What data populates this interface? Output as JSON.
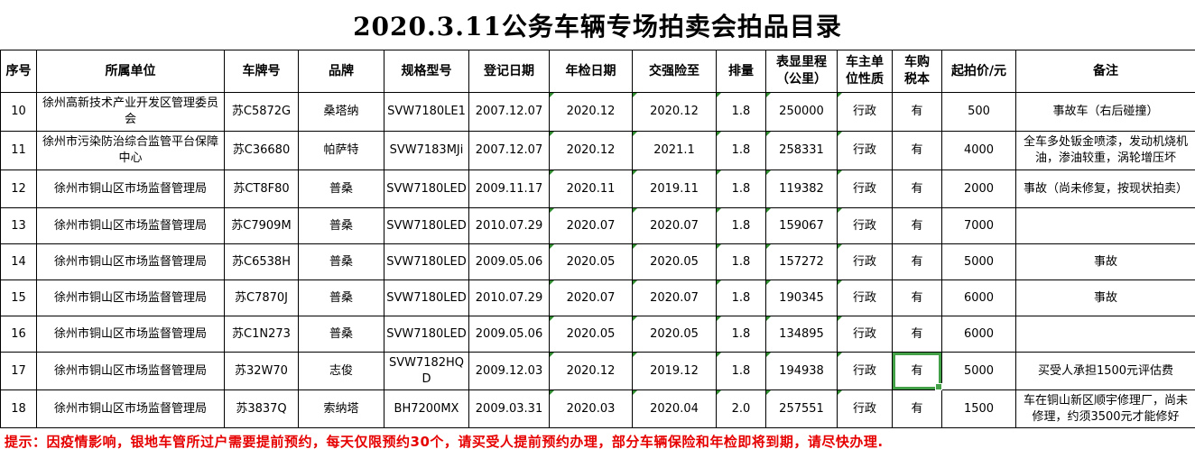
{
  "title": "2020.3.11公务车辆专场拍卖会拍品目录",
  "colors": {
    "selection_green": "#43a047",
    "marker_green": "#2e8b2e",
    "note_red": "#e60000"
  },
  "table": {
    "columns": [
      "序号",
      "所属单位",
      "车牌号",
      "品牌",
      "规格型号",
      "登记日期",
      "年检日期",
      "交强险至",
      "排量",
      "表显里程\n（公里）",
      "车主单\n位性质",
      "车购\n税本",
      "起拍价/元",
      "备注"
    ],
    "error_marker_columns": [
      6,
      7,
      8,
      9,
      10
    ],
    "selected_cell": {
      "row_index": 7,
      "col_index": 11
    },
    "rows": [
      [
        "10",
        "徐州高新技术产业开发区管理委员会",
        "苏C5872G",
        "桑塔纳",
        "SVW7180LE1",
        "2007.12.07",
        "2020.12",
        "2020.12",
        "1.8",
        "250000",
        "行政",
        "有",
        "500",
        "事故车（右后碰撞）"
      ],
      [
        "11",
        "徐州市污染防治综合监管平台保障中心",
        "苏C36680",
        "帕萨特",
        "SVW7183MJi",
        "2007.12.07",
        "2020.12",
        "2021.1",
        "1.8",
        "258331",
        "行政",
        "有",
        "4000",
        "全车多处钣金喷漆，发动机烧机油，渗油较重，涡轮增压坏"
      ],
      [
        "12",
        "徐州市铜山区市场监督管理局",
        "苏CT8F80",
        "普桑",
        "SVW7180LED",
        "2009.11.17",
        "2020.11",
        "2019.11",
        "1.8",
        "119382",
        "行政",
        "有",
        "2000",
        "事故（尚未修复，按现状拍卖）"
      ],
      [
        "13",
        "徐州市铜山区市场监督管理局",
        "苏C7909M",
        "普桑",
        "SVW7180LED",
        "2010.07.29",
        "2020.07",
        "2020.07",
        "1.8",
        "159067",
        "行政",
        "有",
        "7000",
        ""
      ],
      [
        "14",
        "徐州市铜山区市场监督管理局",
        "苏C6538H",
        "普桑",
        "SVW7180LED",
        "2009.05.06",
        "2020.05",
        "2020.05",
        "1.8",
        "157272",
        "行政",
        "有",
        "5000",
        "事故"
      ],
      [
        "15",
        "徐州市铜山区市场监督管理局",
        "苏C7870J",
        "普桑",
        "SVW7180LED",
        "2010.07.29",
        "2020.07",
        "2020.07",
        "1.8",
        "190345",
        "行政",
        "有",
        "6000",
        "事故"
      ],
      [
        "16",
        "徐州市铜山区市场监督管理局",
        "苏C1N273",
        "普桑",
        "SVW7180LED",
        "2009.05.06",
        "2020.05",
        "2020.05",
        "1.8",
        "134895",
        "行政",
        "有",
        "6000",
        ""
      ],
      [
        "17",
        "徐州市铜山区市场监督管理局",
        "苏32W70",
        "志俊",
        "SVW7182HQD",
        "2009.12.03",
        "2020.12",
        "2019.12",
        "1.8",
        "194938",
        "行政",
        "有",
        "5000",
        "买受人承担1500元评估费"
      ],
      [
        "18",
        "徐州市铜山区市场监督管理局",
        "苏3837Q",
        "索纳塔",
        "BH7200MX",
        "2009.03.31",
        "2020.03",
        "2020.04",
        "2.0",
        "257551",
        "行政",
        "有",
        "1500",
        "车在铜山新区顺宇修理厂，尚未修理，约须3500元才能修好"
      ]
    ]
  },
  "note": "提示：因疫情影响，银地车管所过户需要提前预约，每天仅限预约30个，请买受人提前预约办理，部分车辆保险和年检即将到期，请尽快办理."
}
